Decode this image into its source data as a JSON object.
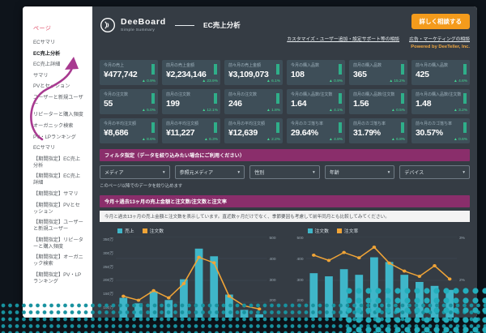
{
  "decor": {
    "dot_color": "#18929f",
    "arrow_color": "#a83a90",
    "accent_orange": "#f49b1c",
    "accent_purple": "#8a2e6b",
    "kpi_green": "#43d993"
  },
  "sidebar": {
    "header": "ページ",
    "items": [
      {
        "label": "ECサマリ",
        "active": false
      },
      {
        "label": "EC売上分析",
        "active": true
      },
      {
        "label": "EC売上詳細",
        "active": false
      },
      {
        "label": "サマリ",
        "active": false
      },
      {
        "label": "PVとセッション",
        "active": false
      },
      {
        "label": "ユーザーと新規ユーザー",
        "active": false
      },
      {
        "label": "リピーターと購入頻度",
        "active": false
      },
      {
        "label": "オーガニック検索",
        "active": false
      },
      {
        "label": "PV・LPランキング",
        "active": false
      },
      {
        "label": "ECサマリ",
        "active": false
      },
      {
        "label": "【期間指定】EC売上分析",
        "active": false
      },
      {
        "label": "【期間指定】EC売上詳細",
        "active": false
      },
      {
        "label": "【期間指定】サマリ",
        "active": false
      },
      {
        "label": "【期間指定】PVとセッション",
        "active": false
      },
      {
        "label": "【期間指定】ユーザーと新規ユーザー",
        "active": false
      },
      {
        "label": "【期間指定】リピーターと購入頻度",
        "active": false
      },
      {
        "label": "【期間指定】オーガニック検索",
        "active": false
      },
      {
        "label": "【期間指定】PV・LPランキング",
        "active": false
      }
    ]
  },
  "header": {
    "brand": "DeeBoard",
    "brand_sub": "Simple Summary",
    "page_title": "EC売上分析",
    "cta": "詳しく相談する",
    "links": [
      "カスタマイズ・ユーザー追加・設定サポート等の相談",
      "広告・マーケティングの相談"
    ],
    "powered_by": "Powered by DeeTeller, Inc."
  },
  "kpis": [
    {
      "label": "今月の売上",
      "value": "¥477,742",
      "delta": "▲ 0.9%"
    },
    {
      "label": "前月の売上金額",
      "value": "¥2,234,146",
      "delta": "▲ 23.9%"
    },
    {
      "label": "前々月の売上金額",
      "value": "¥3,109,073",
      "delta": "▲ 6.1%"
    },
    {
      "label": "今月の購入品数",
      "value": "108",
      "delta": "▲ 0.9%"
    },
    {
      "label": "前月の購入品数",
      "value": "365",
      "delta": "▲ 15.2%"
    },
    {
      "label": "前々月の購入品数",
      "value": "425",
      "delta": "▲ 4.6%"
    },
    {
      "label": "今月の注文数",
      "value": "55",
      "delta": "▲ 5.0%"
    },
    {
      "label": "前月の注文数",
      "value": "199",
      "delta": "▲ 12.1%"
    },
    {
      "label": "前々月の注文数",
      "value": "246",
      "delta": "▲ 1.8%"
    },
    {
      "label": "今月の購入品数/注文数",
      "value": "1.64",
      "delta": "▲ 4.1%"
    },
    {
      "label": "前月の購入品数/注文数",
      "value": "1.56",
      "delta": "▲ 0.5%"
    },
    {
      "label": "前々月の購入品数/注文数",
      "value": "1.48",
      "delta": "▲ 3.2%"
    },
    {
      "label": "今月の平均注文額",
      "value": "¥8,686",
      "delta": "▲ 8.6%"
    },
    {
      "label": "前月の平均注文額",
      "value": "¥11,227",
      "delta": "▲ 6.3%"
    },
    {
      "label": "前々月の平均注文額",
      "value": "¥12,639",
      "delta": "▲ 2.2%"
    },
    {
      "label": "今月のカゴ落ち率",
      "value": "29.64%",
      "delta": "▲ 4.8%"
    },
    {
      "label": "前月のカゴ落ち率",
      "value": "31.79%",
      "delta": "▲ 6.8%"
    },
    {
      "label": "前々月のカゴ落ち率",
      "value": "30.57%",
      "delta": "▲ 0.6%"
    }
  ],
  "filter": {
    "title": "フィルタ指定（データを絞り込みたい場合にご利用ください）",
    "dropdowns": [
      "メディア",
      "参照元メディア",
      "性別",
      "年齢",
      "デバイス"
    ],
    "note": "このページ以降でのデータを絞り込めます"
  },
  "section": {
    "title": "今月＋過去13ヶ月の売上金額と注文数/注文数と注文率",
    "description": "今月と過去13ヶ月の売上金額と注文数を表示しています。直近数ヶ月だけでなく、季節要因も考慮して前年同月とも比較してみてください。"
  },
  "chart_data": [
    {
      "type": "bar",
      "subtype": "bar+line combo",
      "legend": [
        {
          "label": "売上",
          "color": "#3fb6c9",
          "series": "bar"
        },
        {
          "label": "注文数",
          "color": "#f0a437",
          "series": "line"
        }
      ],
      "y_left_ticks": [
        "350万",
        "300万",
        "250万",
        "200万",
        "150万",
        "100万",
        "50万"
      ],
      "y_right_ticks": [
        "500",
        "400",
        "300",
        "200",
        "100"
      ],
      "bar_axis_max": 400,
      "line_axis_max": 550,
      "bar_color": "#3fb6c9",
      "line_color": "#f0a437",
      "bars": [
        120,
        95,
        150,
        110,
        205,
        345,
        310,
        135,
        65,
        45
      ],
      "line": [
        175,
        150,
        210,
        165,
        255,
        420,
        385,
        175,
        115,
        95
      ]
    },
    {
      "type": "bar",
      "subtype": "bar+line combo",
      "legend": [
        {
          "label": "注文数",
          "color": "#3fb6c9",
          "series": "bar"
        },
        {
          "label": "注文率",
          "color": "#f0a437",
          "series": "line"
        }
      ],
      "y_left_ticks": [
        "500",
        "400",
        "300",
        "200",
        "100"
      ],
      "y_right_ticks": [
        "3%",
        "2%",
        "1%"
      ],
      "bar_axis_max": 550,
      "line_axis_max": 3.3,
      "bar_color": "#3fb6c9",
      "line_color": "#f0a437",
      "bars": [
        320,
        300,
        345,
        310,
        420,
        390,
        310,
        265,
        240,
        215
      ],
      "line": [
        2.6,
        2.4,
        2.7,
        2.5,
        2.9,
        2.3,
        2.0,
        1.8,
        2.2,
        1.7
      ]
    }
  ]
}
